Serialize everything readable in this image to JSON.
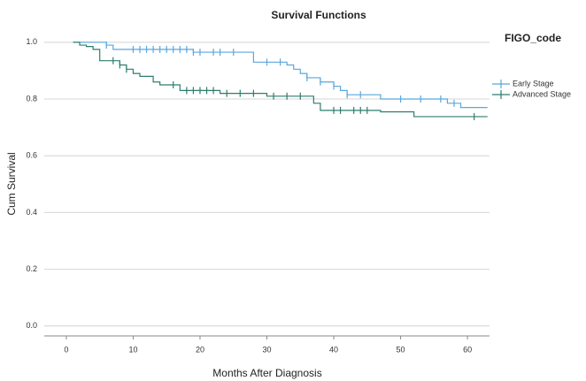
{
  "chart_data": {
    "type": "step",
    "title": "Survival Functions",
    "x_label": "Months After Diagnosis",
    "y_label": "Cum Survival",
    "legend_title": "FIGO_code",
    "legend": "right",
    "grid": true,
    "xlim": [
      -3.3,
      63.3
    ],
    "xticks": [
      0,
      10,
      20,
      30,
      40,
      50,
      60
    ],
    "ylim": [
      -0.035,
      1.04
    ],
    "yticks": [
      {
        "value": 0,
        "label": "0.0"
      },
      0.2,
      0.4,
      0.6,
      0.8,
      {
        "value": 1,
        "label": "1.0"
      }
    ],
    "series": [
      {
        "name": "Early Stage",
        "color": "#5aa7dc",
        "x": [
          1,
          6,
          7,
          19,
          28,
          33,
          34,
          35,
          36,
          38,
          40,
          41,
          42,
          47,
          57,
          59,
          63
        ],
        "values": [
          1,
          0.99,
          0.975,
          0.965,
          0.93,
          0.92,
          0.905,
          0.89,
          0.875,
          0.86,
          0.845,
          0.83,
          0.815,
          0.8,
          0.785,
          0.77,
          0.77
        ],
        "censored": [
          6,
          10,
          11,
          12,
          13,
          14,
          15,
          16,
          17,
          18,
          19,
          20,
          22,
          23,
          25,
          30,
          32,
          36,
          38,
          40,
          42,
          44,
          50,
          53,
          56,
          58
        ]
      },
      {
        "name": "Advanced Stage",
        "color": "#2e7d6e",
        "x": [
          1,
          2,
          3,
          4,
          5,
          8,
          9,
          10,
          11,
          13,
          14,
          17,
          23,
          30,
          37,
          38,
          47,
          52,
          63
        ],
        "values": [
          1,
          0.99,
          0.985,
          0.975,
          0.935,
          0.92,
          0.905,
          0.89,
          0.88,
          0.86,
          0.85,
          0.83,
          0.82,
          0.81,
          0.785,
          0.76,
          0.755,
          0.738,
          0.738
        ],
        "censored": [
          7,
          8,
          9,
          16,
          18,
          19,
          20,
          21,
          22,
          24,
          26,
          28,
          31,
          33,
          35,
          40,
          41,
          43,
          44,
          45,
          61
        ]
      }
    ]
  }
}
